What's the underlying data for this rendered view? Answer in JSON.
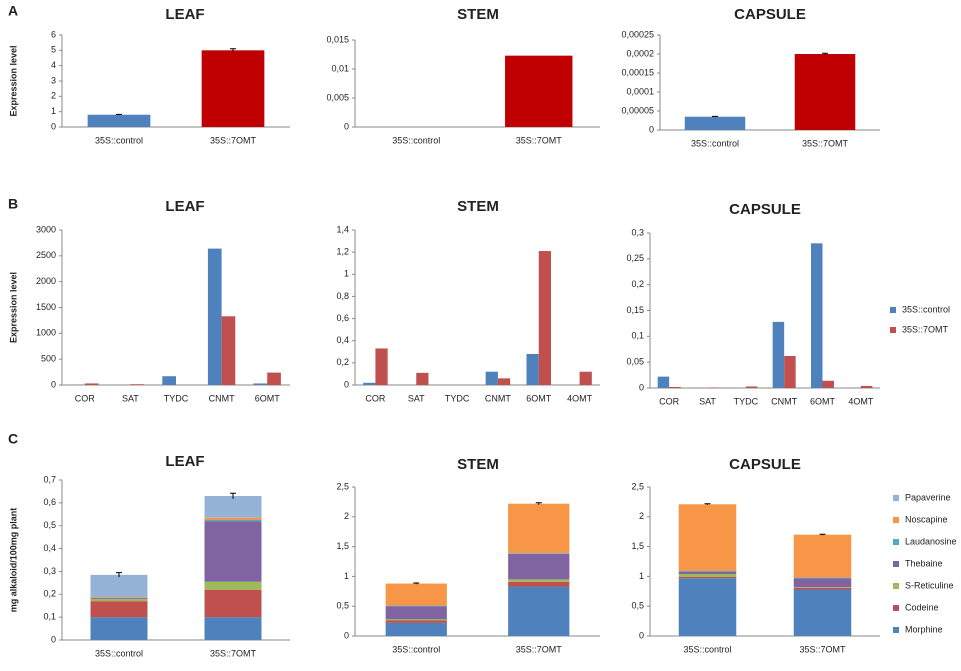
{
  "panels": [
    "A",
    "B",
    "C"
  ],
  "chart_data": [
    {
      "type": "bar",
      "title": "LEAF",
      "y_label": "Expression level",
      "categories": [
        "35S::control",
        "35S::7OMT"
      ],
      "values": [
        0.8,
        5.0
      ],
      "errors": [
        0.02,
        0.1
      ],
      "colors": [
        "#4f81bd",
        "#c00000"
      ],
      "ylim": [
        0,
        6
      ],
      "yticks": [
        0,
        1,
        2,
        3,
        4,
        5,
        6
      ]
    },
    {
      "type": "bar",
      "title": "STEM",
      "categories": [
        "35S::control",
        "35S::7OMT"
      ],
      "values": [
        0,
        0.0123
      ],
      "colors": [
        "#4f81bd",
        "#c00000"
      ],
      "ylim": [
        0,
        0.015
      ],
      "yticks": [
        0,
        {
          "value": 0.005,
          "label": "0,005"
        },
        {
          "value": 0.01,
          "label": "0,01"
        },
        {
          "value": 0.015,
          "label": "0,015"
        }
      ]
    },
    {
      "type": "bar",
      "title": "CAPSULE",
      "categories": [
        "35S::control",
        "35S::7OMT"
      ],
      "values": [
        3.5e-05,
        0.0002
      ],
      "errors": [
        1e-06,
        2e-06
      ],
      "colors": [
        "#4f81bd",
        "#c00000"
      ],
      "ylim": [
        0,
        0.00025
      ],
      "yticks": [
        0,
        {
          "value": 5e-05,
          "label": "0,00005"
        },
        {
          "value": 0.0001,
          "label": "0,0001"
        },
        {
          "value": 0.00015,
          "label": "0,00015"
        },
        {
          "value": 0.0002,
          "label": "0,0002"
        },
        {
          "value": 0.00025,
          "label": "0,00025"
        }
      ]
    },
    {
      "type": "bar",
      "title": "LEAF",
      "y_label": "Expression level",
      "categories": [
        "COR",
        "SAT",
        "TYDC",
        "CNMT",
        "6OMT"
      ],
      "series": [
        {
          "color": "#4f81bd",
          "values": [
            5,
            2,
            170,
            2640,
            30
          ]
        },
        {
          "color": "#c0504d",
          "values": [
            30,
            15,
            0,
            1330,
            240
          ]
        }
      ],
      "ylim": [
        0,
        3000
      ],
      "yticks": [
        0,
        500,
        1000,
        1500,
        2000,
        2500,
        3000
      ]
    },
    {
      "type": "bar",
      "title": "STEM",
      "categories": [
        "COR",
        "SAT",
        "TYDC",
        "CNMT",
        "6OMT",
        "4OMT"
      ],
      "series": [
        {
          "color": "#4f81bd",
          "values": [
            0.02,
            0,
            0,
            0.12,
            0.28,
            0
          ]
        },
        {
          "color": "#c0504d",
          "values": [
            0.33,
            0.11,
            0,
            0.06,
            1.21,
            0.12
          ]
        }
      ],
      "ylim": [
        0,
        1.4
      ],
      "yticks": [
        0,
        {
          "value": 0.2,
          "label": "0,2"
        },
        {
          "value": 0.4,
          "label": "0,4"
        },
        {
          "value": 0.6,
          "label": "0,6"
        },
        {
          "value": 0.8,
          "label": "0,8"
        },
        1,
        {
          "value": 1.2,
          "label": "1,2"
        },
        {
          "value": 1.4,
          "label": "1,4"
        }
      ]
    },
    {
      "type": "bar",
      "title": "CAPSULE",
      "legend": "right",
      "categories": [
        "COR",
        "SAT",
        "TYDC",
        "CNMT",
        "6OMT",
        "4OMT"
      ],
      "series": [
        {
          "name": "35S::control",
          "color": "#4f81bd",
          "values": [
            0.022,
            0,
            0,
            0.128,
            0.28,
            0
          ]
        },
        {
          "name": "35S::7OMT",
          "color": "#c0504d",
          "values": [
            0.002,
            0.001,
            0.003,
            0.062,
            0.014,
            0.004
          ]
        }
      ],
      "ylim": [
        0,
        0.3
      ],
      "yticks": [
        0,
        {
          "value": 0.05,
          "label": "0,05"
        },
        {
          "value": 0.1,
          "label": "0,1"
        },
        {
          "value": 0.15,
          "label": "0,15"
        },
        {
          "value": 0.2,
          "label": "0,2"
        },
        {
          "value": 0.25,
          "label": "0,25"
        },
        {
          "value": 0.3,
          "label": "0,3"
        }
      ]
    },
    {
      "type": "stacked_bar",
      "title": "LEAF",
      "y_label": "mg alkaloid/100mg plant",
      "categories": [
        "35S::control",
        "35S::7OMT"
      ],
      "series": [
        {
          "color": "#4f81bd",
          "values": [
            0.1,
            0.1
          ]
        },
        {
          "color": "#c0504d",
          "values": [
            0.07,
            0.12
          ]
        },
        {
          "color": "#9bbb59",
          "values": [
            0.01,
            0.035
          ]
        },
        {
          "color": "#8064a2",
          "values": [
            0.005,
            0.265
          ]
        },
        {
          "color": "#4bacc6",
          "values": [
            0.002,
            0.005
          ]
        },
        {
          "color": "#f79646",
          "values": [
            0.003,
            0.01
          ]
        },
        {
          "color": "#95b3d7",
          "values": [
            0.095,
            0.095
          ]
        }
      ],
      "errors": [
        0.01,
        0.012
      ],
      "ylim": [
        0,
        0.7
      ],
      "yticks": [
        0,
        {
          "value": 0.1,
          "label": "0,1"
        },
        {
          "value": 0.2,
          "label": "0,2"
        },
        {
          "value": 0.3,
          "label": "0,3"
        },
        {
          "value": 0.4,
          "label": "0,4"
        },
        {
          "value": 0.5,
          "label": "0,5"
        },
        {
          "value": 0.6,
          "label": "0,6"
        },
        {
          "value": 0.7,
          "label": "0,7"
        }
      ]
    },
    {
      "type": "stacked_bar",
      "title": "STEM",
      "categories": [
        "35S::control",
        "35S::7OMT"
      ],
      "series": [
        {
          "color": "#4f81bd",
          "values": [
            0.22,
            0.83
          ]
        },
        {
          "color": "#c0504d",
          "values": [
            0.04,
            0.08
          ]
        },
        {
          "color": "#9bbb59",
          "values": [
            0.02,
            0.04
          ]
        },
        {
          "color": "#8064a2",
          "values": [
            0.22,
            0.43
          ]
        },
        {
          "color": "#4bacc6",
          "values": [
            0.01,
            0.01
          ]
        },
        {
          "color": "#f79646",
          "values": [
            0.37,
            0.83
          ]
        },
        {
          "color": "#95b3d7",
          "values": [
            0,
            0
          ]
        }
      ],
      "errors": [
        0.01,
        0.015
      ],
      "ylim": [
        0,
        2.5
      ],
      "yticks": [
        0,
        {
          "value": 0.5,
          "label": "0,5"
        },
        1,
        {
          "value": 1.5,
          "label": "1,5"
        },
        2,
        {
          "value": 2.5,
          "label": "2,5"
        }
      ]
    },
    {
      "type": "stacked_bar",
      "title": "CAPSULE",
      "legend": "right",
      "categories": [
        "35S::control",
        "35S::7OMT"
      ],
      "series": [
        {
          "name": "Morphine",
          "color": "#4f81bd",
          "values": [
            0.97,
            0.78
          ]
        },
        {
          "name": "Codeine",
          "color": "#c0504d",
          "values": [
            0.02,
            0.03
          ]
        },
        {
          "name": "S-Reticuline",
          "color": "#9bbb59",
          "values": [
            0.05,
            0.01
          ]
        },
        {
          "name": "Thebaine",
          "color": "#8064a2",
          "values": [
            0.04,
            0.15
          ]
        },
        {
          "name": "Laudanosine",
          "color": "#4bacc6",
          "values": [
            0.01,
            0.01
          ]
        },
        {
          "name": "Noscapine",
          "color": "#f79646",
          "values": [
            1.12,
            0.72
          ]
        },
        {
          "name": "Papaverine",
          "color": "#95b3d7",
          "values": [
            0,
            0
          ]
        }
      ],
      "errors": [
        0.008,
        0.008
      ],
      "ylim": [
        0,
        2.5
      ],
      "yticks": [
        0,
        {
          "value": 0.5,
          "label": "0,5"
        },
        1,
        {
          "value": 1.5,
          "label": "1,5"
        },
        2,
        {
          "value": 2.5,
          "label": "2,5"
        }
      ]
    }
  ]
}
